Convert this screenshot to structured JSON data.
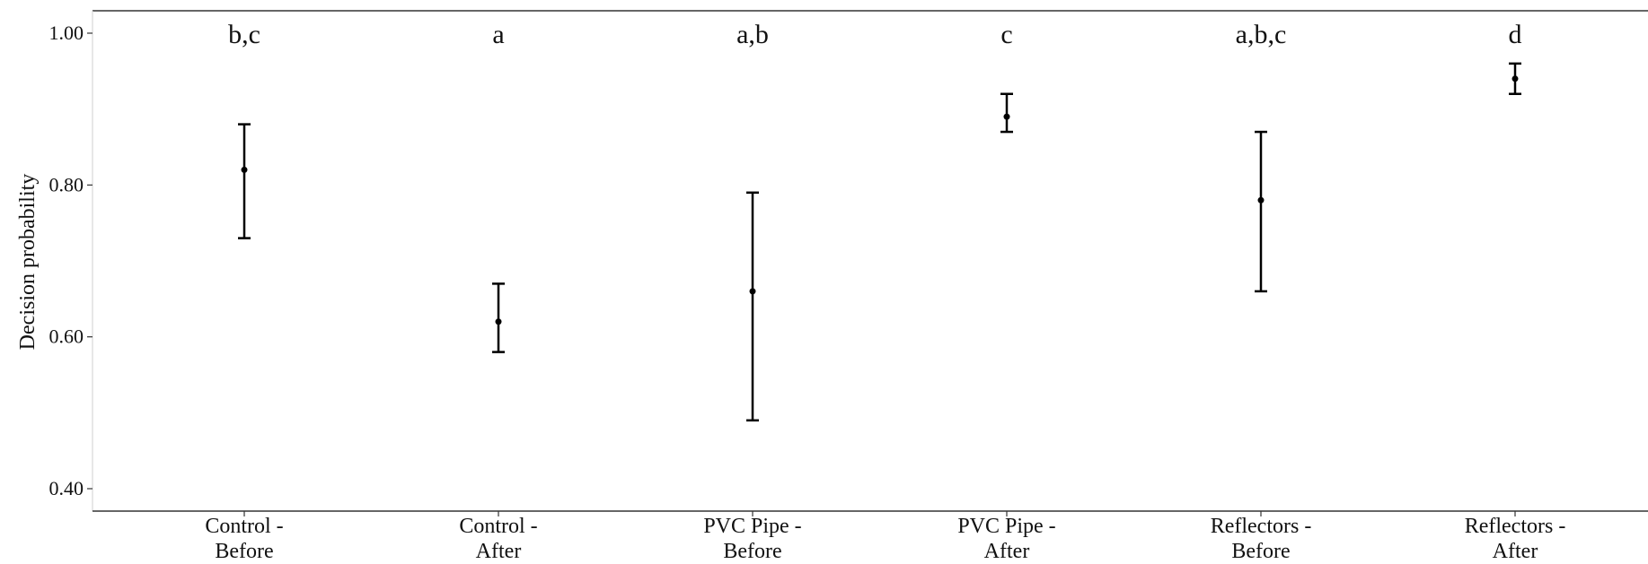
{
  "chart_data": {
    "type": "scatter",
    "ylabel": "Decision probability",
    "xlabel": "",
    "ylim": [
      0.37,
      1.03
    ],
    "yticks": [
      1.0,
      0.8,
      0.6,
      0.4
    ],
    "ytick_labels": [
      "1.00",
      "0.80",
      "0.60",
      "0.40"
    ],
    "categories": [
      [
        "Control -",
        "Before"
      ],
      [
        "Control -",
        "After"
      ],
      [
        "PVC Pipe -",
        "Before"
      ],
      [
        "PVC Pipe -",
        "After"
      ],
      [
        "Reflectors -",
        "Before"
      ],
      [
        "Reflectors -",
        "After"
      ]
    ],
    "points": [
      {
        "estimate": 0.82,
        "lower": 0.73,
        "upper": 0.88,
        "group": "b,c"
      },
      {
        "estimate": 0.62,
        "lower": 0.58,
        "upper": 0.67,
        "group": "a"
      },
      {
        "estimate": 0.66,
        "lower": 0.49,
        "upper": 0.79,
        "group": "a,b"
      },
      {
        "estimate": 0.89,
        "lower": 0.87,
        "upper": 0.92,
        "group": "c"
      },
      {
        "estimate": 0.78,
        "lower": 0.66,
        "upper": 0.87,
        "group": "a,b,c"
      },
      {
        "estimate": 0.94,
        "lower": 0.92,
        "upper": 0.96,
        "group": "d"
      }
    ],
    "grid": false,
    "legend": "none",
    "colors": {
      "marks": "#000000",
      "axis": "#333333"
    }
  }
}
